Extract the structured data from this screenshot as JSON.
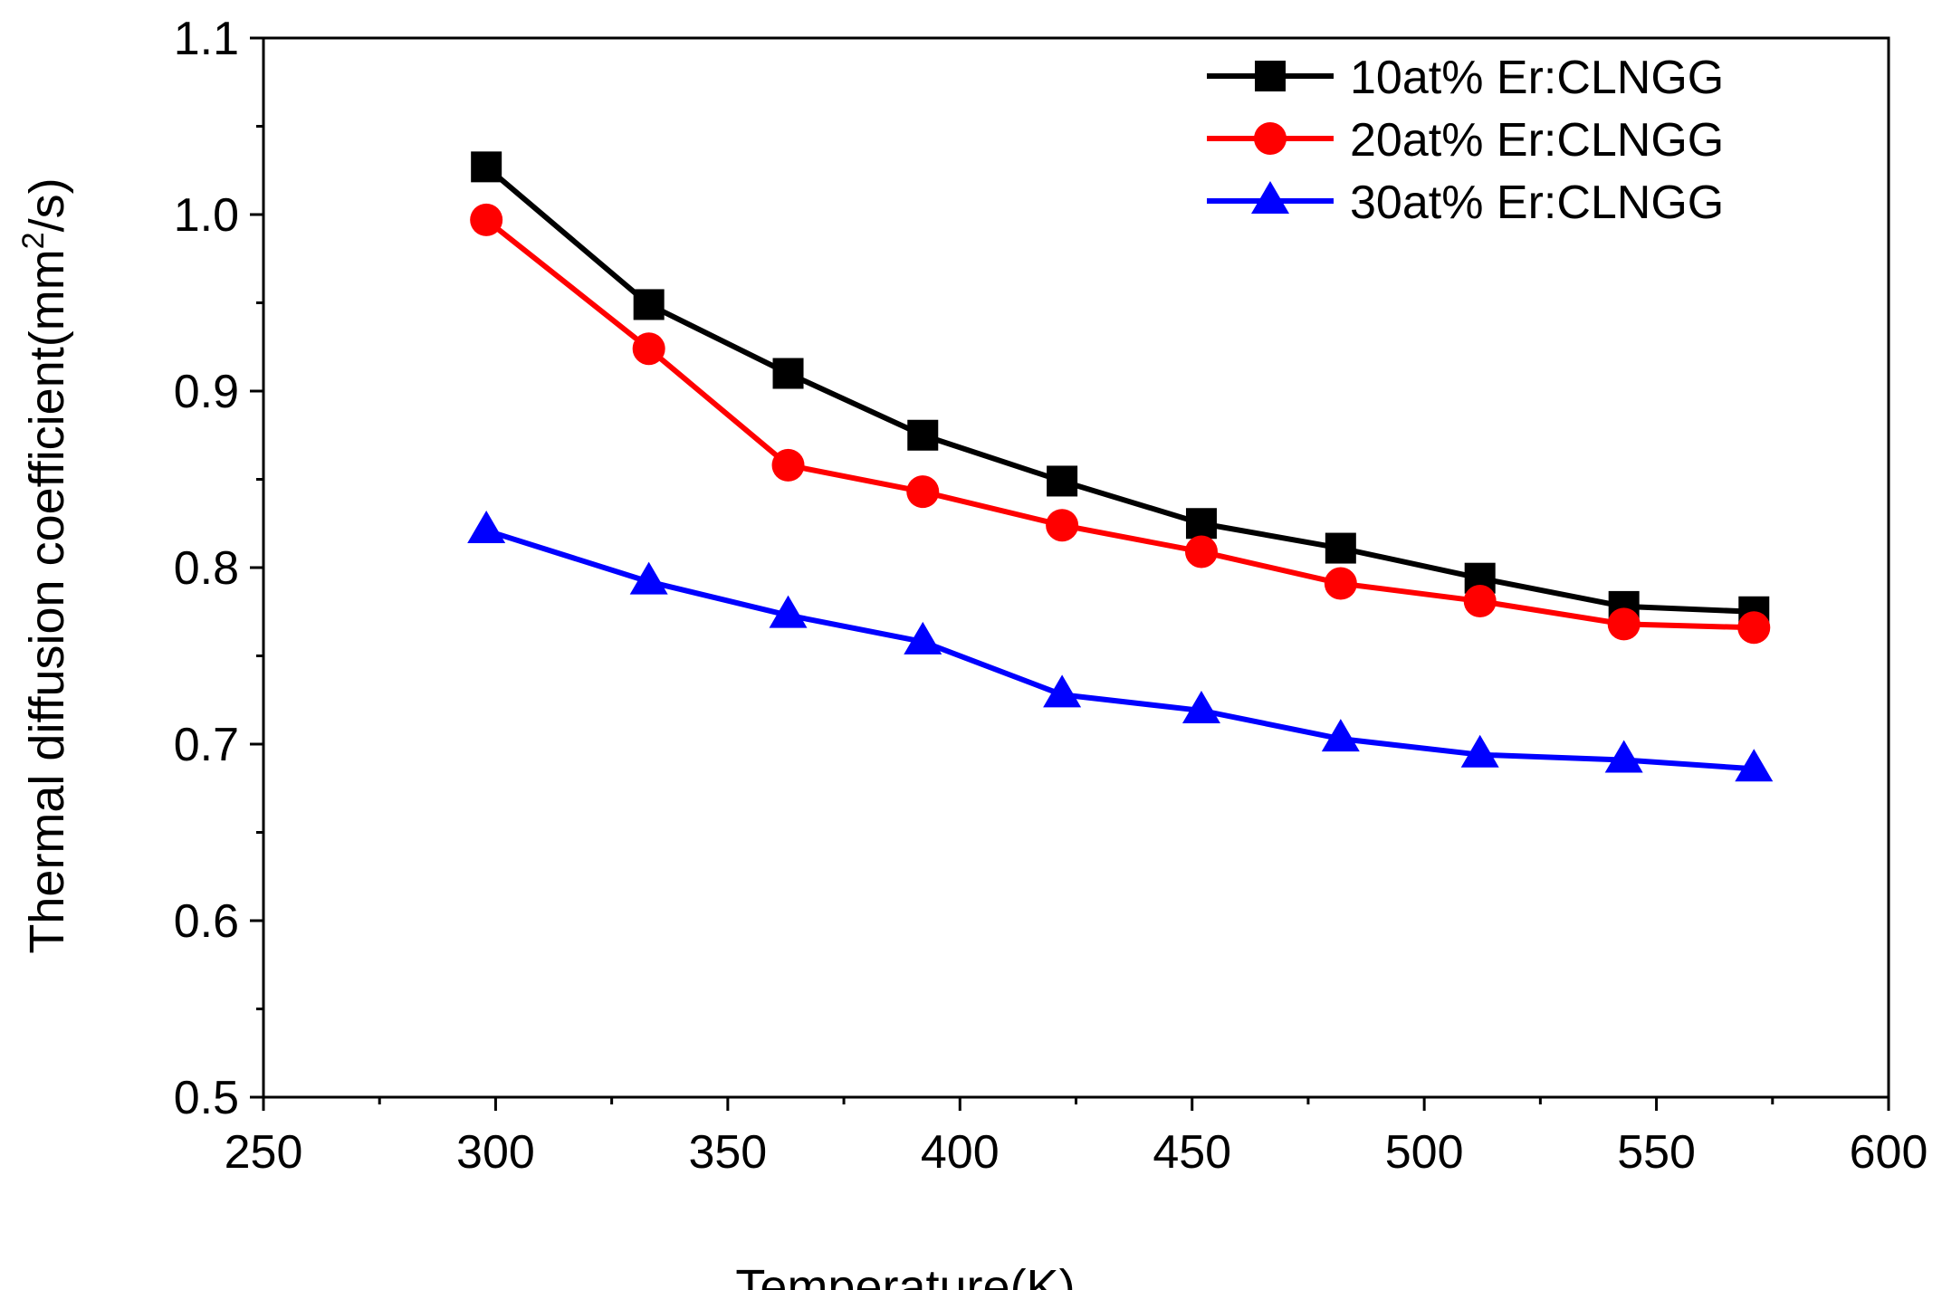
{
  "chart_data": {
    "type": "line",
    "title": "",
    "xlabel": "Temperature(K)",
    "ylabel": {
      "prefix": "Thermal diffusion coefficient(mm",
      "superscript": "2",
      "suffix": "/s)"
    },
    "xlim": [
      250,
      600
    ],
    "ylim": [
      0.5,
      1.1
    ],
    "x_ticks": [
      250,
      300,
      350,
      400,
      450,
      500,
      550,
      600
    ],
    "x_tick_labels": [
      "250",
      "300",
      "350",
      "400",
      "450",
      "500",
      "550",
      "600"
    ],
    "y_ticks": [
      0.5,
      0.6,
      0.7,
      0.8,
      0.9,
      1.0,
      1.1
    ],
    "y_tick_labels": [
      "0.5",
      "0.6",
      "0.7",
      "0.8",
      "0.9",
      "1.0",
      "1.1"
    ],
    "grid": false,
    "legend_position": "top-right",
    "series": [
      {
        "name": "10at% Er:CLNGG",
        "color": "#000000",
        "marker": "square",
        "x": [
          298,
          333,
          363,
          392,
          422,
          452,
          482,
          512,
          543,
          571
        ],
        "y": [
          1.027,
          0.949,
          0.91,
          0.875,
          0.849,
          0.825,
          0.811,
          0.794,
          0.778,
          0.775
        ]
      },
      {
        "name": "20at% Er:CLNGG",
        "color": "#ff0000",
        "marker": "circle",
        "x": [
          298,
          333,
          363,
          392,
          422,
          452,
          482,
          512,
          543,
          571
        ],
        "y": [
          0.997,
          0.924,
          0.858,
          0.843,
          0.824,
          0.809,
          0.791,
          0.781,
          0.768,
          0.766
        ]
      },
      {
        "name": "30at% Er:CLNGG",
        "color": "#0000ff",
        "marker": "triangle",
        "x": [
          298,
          333,
          363,
          392,
          422,
          452,
          482,
          512,
          543,
          571
        ],
        "y": [
          0.821,
          0.792,
          0.773,
          0.758,
          0.728,
          0.719,
          0.703,
          0.694,
          0.691,
          0.686
        ]
      }
    ]
  }
}
